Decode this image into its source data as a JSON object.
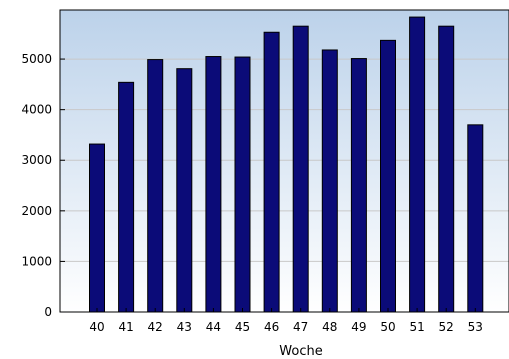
{
  "chart_data": {
    "type": "bar",
    "title": "",
    "xlabel": "Woche",
    "ylabel": "",
    "categories": [
      "40",
      "41",
      "42",
      "43",
      "44",
      "45",
      "46",
      "47",
      "48",
      "49",
      "50",
      "51",
      "52",
      "53"
    ],
    "values": [
      3320,
      4540,
      4990,
      4810,
      5050,
      5040,
      5530,
      5650,
      5180,
      5010,
      5370,
      5830,
      5650,
      3700
    ],
    "ylim": [
      0,
      5970
    ],
    "yticks": [
      0,
      1000,
      2000,
      3000,
      4000,
      5000
    ],
    "grid": true,
    "legend": "none",
    "colors": {
      "bar_fill": "#0b0b78",
      "bar_stroke": "#000000",
      "bg_top": "#bcd2ea",
      "bg_bottom": "#ffffff",
      "grid": "#c8c8c8"
    }
  }
}
